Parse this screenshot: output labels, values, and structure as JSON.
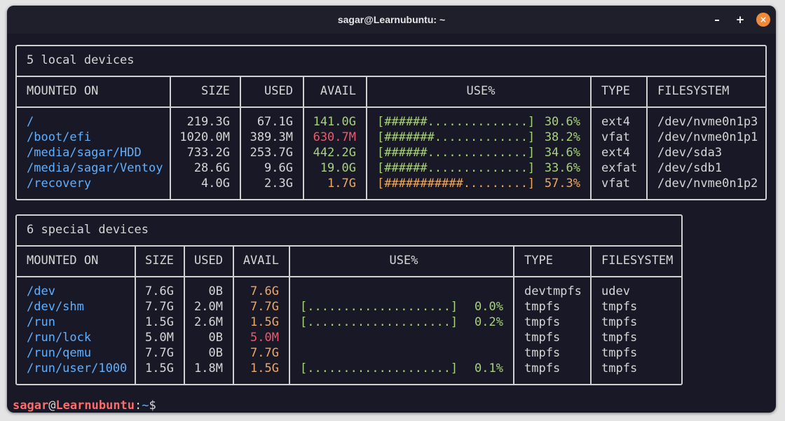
{
  "window": {
    "title": "sagar@Learnubuntu: ~",
    "minimize": "–",
    "maximize": "+",
    "close": "×"
  },
  "local": {
    "caption": "5 local devices",
    "headers": {
      "mounted_on": "MOUNTED ON",
      "size": "SIZE",
      "used": "USED",
      "avail": "AVAIL",
      "use_pct": "USE%",
      "type": "TYPE",
      "filesystem": "FILESYSTEM"
    },
    "rows": [
      {
        "mount": "/",
        "size": "219.3G",
        "used": "67.1G",
        "avail": "141.0G",
        "bar": "[######..............]",
        "pct": "30.6%",
        "type": "ext4",
        "fs": "/dev/nvme0n1p3"
      },
      {
        "mount": "/boot/efi",
        "size": "1020.0M",
        "used": "389.3M",
        "avail": "630.7M",
        "bar": "[#######.............]",
        "pct": "38.2%",
        "type": "vfat",
        "fs": "/dev/nvme0n1p1"
      },
      {
        "mount": "/media/sagar/HDD",
        "size": "733.2G",
        "used": "253.7G",
        "avail": "442.2G",
        "bar": "[######..............]",
        "pct": "34.6%",
        "type": "ext4",
        "fs": "/dev/sda3"
      },
      {
        "mount": "/media/sagar/Ventoy",
        "size": "28.6G",
        "used": "9.6G",
        "avail": "19.0G",
        "bar": "[######..............]",
        "pct": "33.6%",
        "type": "exfat",
        "fs": "/dev/sdb1"
      },
      {
        "mount": "/recovery",
        "size": "4.0G",
        "used": "2.3G",
        "avail": "1.7G",
        "bar": "[###########.........]",
        "pct": "57.3%",
        "type": "vfat",
        "fs": "/dev/nvme0n1p2"
      }
    ]
  },
  "special": {
    "caption": "6 special devices",
    "headers": {
      "mounted_on": "MOUNTED ON",
      "size": "SIZE",
      "used": "USED",
      "avail": "AVAIL",
      "use_pct": "USE%",
      "type": "TYPE",
      "filesystem": "FILESYSTEM"
    },
    "rows": [
      {
        "mount": "/dev",
        "size": "7.6G",
        "used": "0B",
        "avail": "7.6G",
        "bar": "",
        "pct": "",
        "type": "devtmpfs",
        "fs": "udev"
      },
      {
        "mount": "/dev/shm",
        "size": "7.7G",
        "used": "2.0M",
        "avail": "7.7G",
        "bar": "[....................]",
        "pct": "0.0%",
        "type": "tmpfs",
        "fs": "tmpfs"
      },
      {
        "mount": "/run",
        "size": "1.5G",
        "used": "2.6M",
        "avail": "1.5G",
        "bar": "[....................]",
        "pct": "0.2%",
        "type": "tmpfs",
        "fs": "tmpfs"
      },
      {
        "mount": "/run/lock",
        "size": "5.0M",
        "used": "0B",
        "avail": "5.0M",
        "bar": "",
        "pct": "",
        "type": "tmpfs",
        "fs": "tmpfs"
      },
      {
        "mount": "/run/qemu",
        "size": "7.7G",
        "used": "0B",
        "avail": "7.7G",
        "bar": "",
        "pct": "",
        "type": "tmpfs",
        "fs": "tmpfs"
      },
      {
        "mount": "/run/user/1000",
        "size": "1.5G",
        "used": "1.8M",
        "avail": "1.5G",
        "bar": "[....................]",
        "pct": "0.1%",
        "type": "tmpfs",
        "fs": "tmpfs"
      }
    ]
  },
  "prompt": {
    "user": "sagar",
    "at": "@",
    "host": "Learnubuntu",
    "colon": ":",
    "path": "~",
    "symbol": "$"
  },
  "colors": {
    "mount": "#5fb0ff",
    "green": "#a8d37a",
    "red": "#ef5a6a",
    "orange": "#f0a860",
    "background": "#181826"
  }
}
